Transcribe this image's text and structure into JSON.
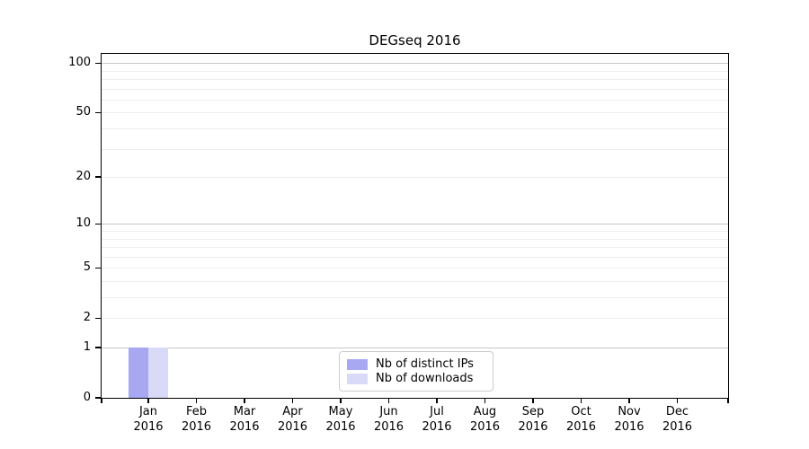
{
  "chart_data": {
    "type": "bar",
    "title": "DEGseq 2016",
    "categories": [
      "Jan",
      "Feb",
      "Mar",
      "Apr",
      "May",
      "Jun",
      "Jul",
      "Aug",
      "Sep",
      "Oct",
      "Nov",
      "Dec"
    ],
    "tick_year_label": "2016",
    "series": [
      {
        "name": "Nb of distinct IPs",
        "color": "#a7a7f2",
        "values": [
          1,
          0,
          0,
          0,
          0,
          0,
          0,
          0,
          0,
          0,
          0,
          0
        ]
      },
      {
        "name": "Nb of downloads",
        "color": "#d9d9f8",
        "values": [
          1,
          0,
          0,
          0,
          0,
          0,
          0,
          0,
          0,
          0,
          0,
          0
        ]
      }
    ],
    "xlabel": "",
    "ylabel": "",
    "yscale": "log1p",
    "ylim": [
      0,
      113.6
    ],
    "yticks": [
      0,
      1,
      2,
      5,
      10,
      20,
      50,
      100
    ],
    "grid": true,
    "grid_major_values": [
      1,
      10,
      100
    ],
    "grid_minor_values": [
      2,
      3,
      4,
      5,
      6,
      7,
      8,
      9,
      20,
      30,
      40,
      50,
      60,
      70,
      80,
      90
    ],
    "legend_position": "lower center",
    "colors": {
      "grid_major": "#c8c8c8",
      "grid_minor": "#ededed",
      "spine": "#000000",
      "background": "#ffffff"
    }
  }
}
